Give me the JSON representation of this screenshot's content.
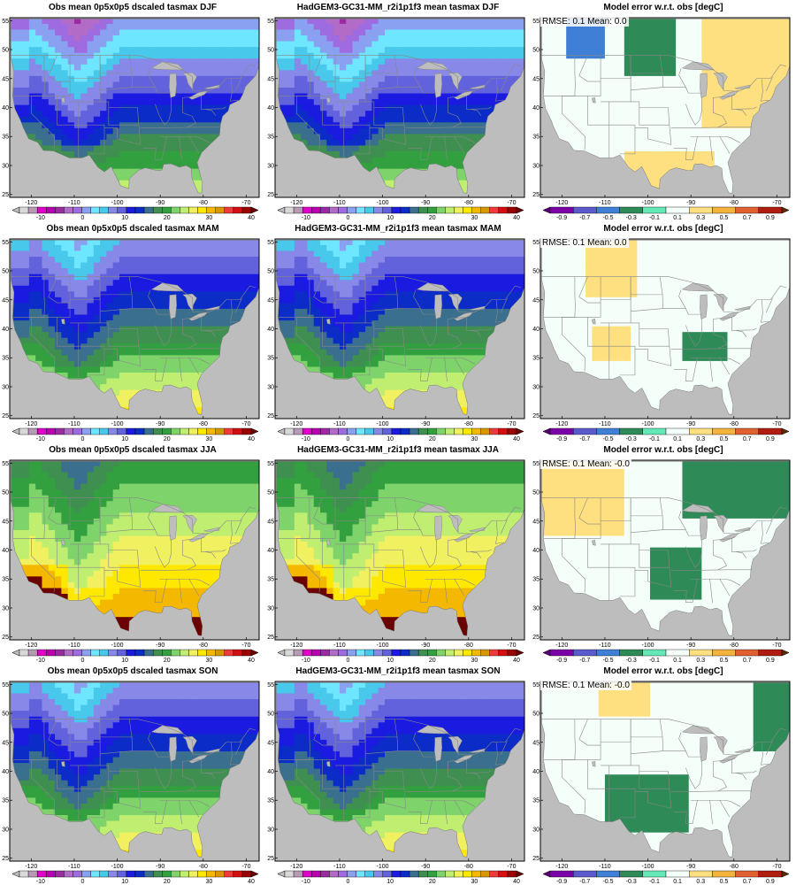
{
  "figure": {
    "seasons": [
      "DJF",
      "MAM",
      "JJA",
      "SON"
    ],
    "columns": [
      {
        "id": "obs",
        "title_template": "Obs mean 0p5x0p5 dscaled tasmax {season}",
        "scale": "temp"
      },
      {
        "id": "model",
        "title_template": "HadGEM3-GC31-MM_r2i1p1f3 mean tasmax {season}",
        "scale": "temp"
      },
      {
        "id": "error",
        "title_template": "Model error w.r.t. obs [degC]",
        "scale": "err"
      }
    ],
    "error_stats": {
      "DJF": "RMSE: 0.1   Mean: 0.0",
      "MAM": "RMSE: 0.1   Mean: 0.0",
      "JJA": "RMSE: 0.1   Mean: -0.0",
      "SON": "RMSE: 0.1   Mean: -0.0"
    }
  },
  "map_axes": {
    "lon_range": [
      -125,
      -67
    ],
    "lat_range": [
      24.5,
      55.5
    ],
    "lon_ticks": [
      -120,
      -110,
      -100,
      -90,
      -80,
      -70
    ],
    "lat_ticks": [
      25,
      30,
      35,
      40,
      45,
      50,
      55
    ],
    "lon_tick_labels": [
      "-120",
      "-110",
      "-100",
      "-90",
      "-80",
      "-70"
    ],
    "lat_tick_labels": [
      "25",
      "30",
      "35",
      "40",
      "45",
      "50",
      "55"
    ]
  },
  "colorbars": {
    "temp": {
      "min": -15,
      "max": 40,
      "step": 2.5,
      "labels": [
        "-10",
        "0",
        "10",
        "20",
        "30",
        "40"
      ],
      "label_values": [
        -10,
        0,
        10,
        20,
        30,
        40
      ],
      "under_color": "#bdbdbd",
      "over_color": "#6b0000",
      "colors": [
        "#d9d9d9",
        "#b69ab6",
        "#e000c8",
        "#b800b0",
        "#9c2aa0",
        "#b26cc8",
        "#9e6be0",
        "#8aa0f0",
        "#6fe6ff",
        "#48c8ea",
        "#8888e8",
        "#6262dc",
        "#1a1ae0",
        "#0c2cc8",
        "#3a6f8e",
        "#3f8f50",
        "#33a040",
        "#7fd36b",
        "#c0ee70",
        "#f0f060",
        "#ffe800",
        "#f4b800",
        "#d69700",
        "#ee3a3a",
        "#d21010",
        "#9a0000"
      ]
    },
    "err": {
      "min": -1.0,
      "max": 1.0,
      "step": 0.2,
      "labels": [
        "-0.9",
        "-0.7",
        "-0.5",
        "-0.3",
        "-0.1",
        "0.1",
        "0.3",
        "0.5",
        "0.7",
        "0.9"
      ],
      "label_values": [
        -0.9,
        -0.7,
        -0.5,
        -0.3,
        -0.1,
        0.1,
        0.3,
        0.5,
        0.7,
        0.9
      ],
      "under_color": "#5a0075",
      "over_color": "#5a2a00",
      "colors": [
        "#7c00a8",
        "#5b5bcd",
        "#3f7fd6",
        "#2e8b57",
        "#64e8b8",
        "#f4fffa",
        "#ffe080",
        "#f3b33d",
        "#e0602f",
        "#b01c10"
      ]
    }
  },
  "colors": {
    "background": "#ffffff",
    "ocean_missing": "#bdbdbd",
    "border_lines": "#888888",
    "frame": "#000000"
  }
}
